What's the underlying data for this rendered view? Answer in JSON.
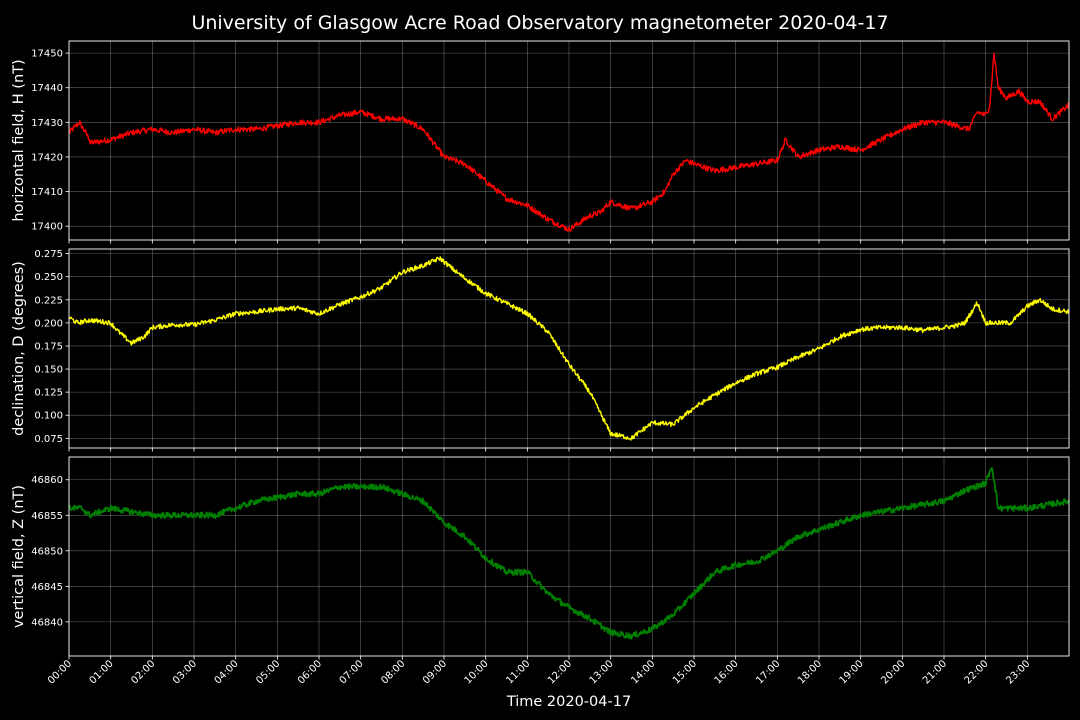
{
  "chart_data": {
    "type": "line",
    "title": "University of Glasgow Acre Road Observatory magnetometer 2020-04-17",
    "xlabel": "Time 2020-04-17",
    "x_ticks": [
      "00:00",
      "01:00",
      "02:00",
      "03:00",
      "04:00",
      "05:00",
      "06:00",
      "07:00",
      "08:00",
      "09:00",
      "10:00",
      "11:00",
      "12:00",
      "13:00",
      "14:00",
      "15:00",
      "16:00",
      "17:00",
      "18:00",
      "19:00",
      "20:00",
      "21:00",
      "22:00",
      "23:00"
    ],
    "xlim": [
      0,
      24
    ],
    "grid": true,
    "panels": [
      {
        "ylabel": "horizontal field, H (nT)",
        "color": "#ff0000",
        "ylim": [
          17396,
          17453.5
        ],
        "yticks": [
          17400,
          17410,
          17420,
          17430,
          17440,
          17450
        ],
        "yticks_labels": [
          "17400",
          "17410",
          "17420",
          "17430",
          "17440",
          "17450"
        ],
        "noise": 0.8,
        "series": {
          "x": [
            0,
            0.25,
            0.5,
            0.5,
            1.0,
            1.5,
            2.0,
            2.5,
            3.0,
            3.5,
            4.0,
            4.5,
            5.0,
            5.5,
            6.0,
            6.5,
            7.0,
            7.5,
            8.0,
            8.5,
            8.75,
            9.0,
            9.5,
            10.0,
            10.5,
            11.0,
            11.5,
            12.0,
            12.5,
            12.75,
            13.0,
            13.5,
            14.0,
            14.3,
            14.5,
            14.8,
            15.0,
            15.5,
            16.0,
            16.5,
            17.0,
            17.2,
            17.5,
            18.0,
            18.5,
            19.0,
            19.5,
            20.0,
            20.5,
            21.0,
            21.3,
            21.6,
            21.8,
            22.0,
            22.1,
            22.2,
            22.3,
            22.5,
            22.8,
            23.0,
            23.3,
            23.6,
            24.0
          ],
          "y": [
            17427,
            17430,
            17425,
            17424,
            17425,
            17427,
            17428,
            17427,
            17428,
            17427,
            17428,
            17428,
            17429,
            17430,
            17430,
            17432,
            17433,
            17431,
            17431,
            17428,
            17424,
            17420,
            17418,
            17413,
            17408,
            17406,
            17402,
            17399,
            17403,
            17404,
            17407,
            17405,
            17407,
            17410,
            17415,
            17419,
            17418,
            17416,
            17417,
            17418,
            17419,
            17425,
            17420,
            17422,
            17423,
            17422,
            17425,
            17428,
            17430,
            17430,
            17429,
            17428,
            17433,
            17432,
            17435,
            17450,
            17440,
            17437,
            17439,
            17436,
            17436,
            17431,
            17435
          ]
        }
      },
      {
        "ylabel": "declination, D (degrees)",
        "color": "#ffff00",
        "ylim": [
          0.0645,
          0.28
        ],
        "yticks": [
          0.075,
          0.1,
          0.125,
          0.15,
          0.175,
          0.2,
          0.225,
          0.25,
          0.275
        ],
        "yticks_labels": [
          "0.075",
          "0.100",
          "0.125",
          "0.150",
          "0.175",
          "0.200",
          "0.225",
          "0.250",
          "0.275"
        ],
        "noise": 0.0025,
        "series": {
          "x": [
            0,
            0.2,
            0.5,
            1.0,
            1.2,
            1.5,
            1.8,
            2.0,
            2.5,
            3.0,
            3.5,
            4.0,
            4.5,
            5.0,
            5.5,
            6.0,
            6.5,
            7.0,
            7.5,
            8.0,
            8.5,
            8.9,
            9.3,
            10.0,
            11.0,
            11.5,
            12.0,
            12.5,
            13.0,
            13.5,
            14.0,
            14.5,
            15.0,
            15.5,
            16.0,
            16.5,
            17.0,
            17.5,
            18.0,
            18.5,
            19.0,
            19.5,
            20.0,
            20.5,
            21.0,
            21.3,
            21.5,
            21.8,
            22.0,
            22.4,
            22.6,
            23.0,
            23.3,
            23.6,
            24.0
          ],
          "y": [
            0.206,
            0.2,
            0.203,
            0.2,
            0.19,
            0.178,
            0.185,
            0.195,
            0.198,
            0.198,
            0.203,
            0.21,
            0.212,
            0.215,
            0.216,
            0.21,
            0.22,
            0.228,
            0.238,
            0.255,
            0.262,
            0.27,
            0.255,
            0.232,
            0.21,
            0.19,
            0.155,
            0.125,
            0.08,
            0.075,
            0.092,
            0.09,
            0.108,
            0.122,
            0.135,
            0.145,
            0.152,
            0.163,
            0.172,
            0.185,
            0.193,
            0.195,
            0.195,
            0.192,
            0.195,
            0.197,
            0.2,
            0.222,
            0.2,
            0.2,
            0.2,
            0.218,
            0.225,
            0.215,
            0.212
          ]
        }
      },
      {
        "ylabel": "vertical field, Z (nT)",
        "color": "#008000",
        "ylim": [
          46835.2,
          46863.2
        ],
        "yticks": [
          46840,
          46845,
          46850,
          46855,
          46860
        ],
        "yticks_labels": [
          "46840",
          "46845",
          "46850",
          "46855",
          "46860"
        ],
        "noise": 0.4,
        "series": {
          "x": [
            0,
            0.3,
            0.5,
            1.0,
            1.5,
            2.0,
            2.5,
            3.0,
            3.5,
            4.0,
            4.5,
            5.0,
            5.5,
            6.0,
            6.5,
            7.0,
            7.5,
            8.0,
            8.5,
            9.0,
            9.5,
            10.0,
            10.5,
            11.0,
            11.5,
            12.0,
            12.5,
            13.0,
            13.5,
            14.0,
            14.5,
            15.0,
            15.5,
            16.0,
            16.5,
            17.0,
            17.5,
            18.0,
            18.5,
            19.0,
            19.5,
            20.0,
            20.5,
            21.0,
            21.5,
            22.0,
            22.15,
            22.3,
            22.5,
            23.0,
            23.5,
            24.0
          ],
          "y": [
            46856,
            46856,
            46855,
            46856,
            46855.5,
            46855,
            46855,
            46855,
            46855,
            46856,
            46857,
            46857.5,
            46858,
            46858,
            46859,
            46859,
            46859,
            46858,
            46857,
            46854,
            46852,
            46849,
            46847,
            46847,
            46844,
            46842,
            46840.5,
            46838.5,
            46838,
            46839,
            46841,
            46844,
            46847,
            46848,
            46848.5,
            46850,
            46852,
            46853,
            46854,
            46855,
            46855.5,
            46856,
            46856.5,
            46857,
            46858.5,
            46859.5,
            46862,
            46856,
            46856,
            46856,
            46856.5,
            46857
          ]
        }
      }
    ]
  }
}
